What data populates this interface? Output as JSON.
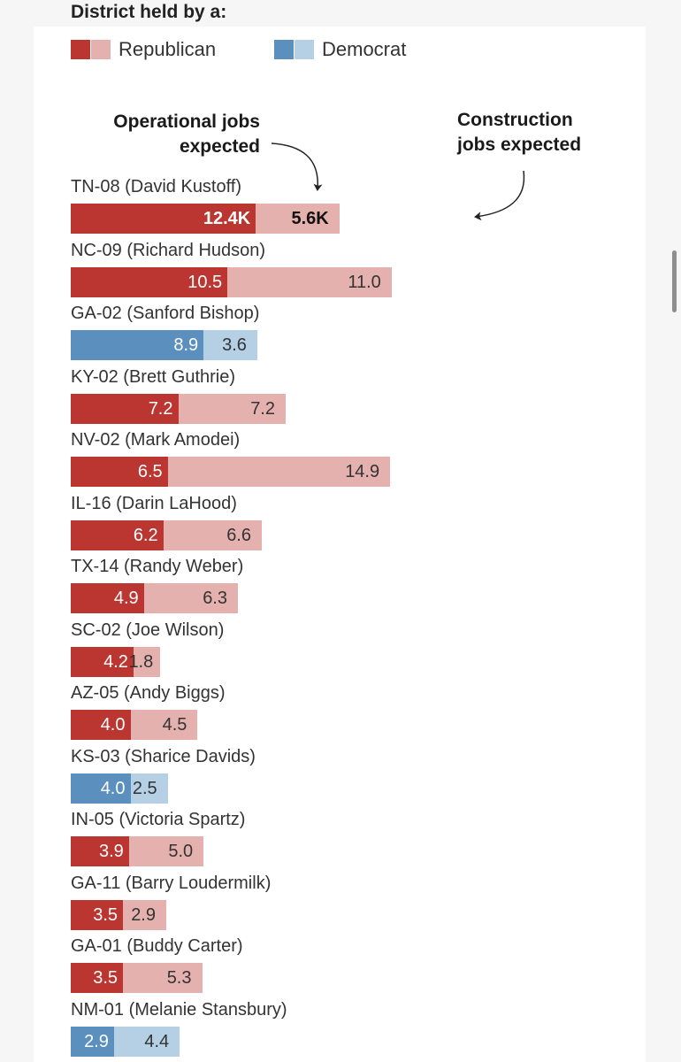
{
  "legend": {
    "title": "District held by a:",
    "republican_label": "Republican",
    "democrat_label": "Democrat"
  },
  "colors": {
    "republican_operational": "#bb3630",
    "republican_construction": "#e4b1ae",
    "democrat_operational": "#5a8fbe",
    "democrat_construction": "#b5cfe4"
  },
  "annotations": {
    "operational": [
      "Operational jobs",
      "expected"
    ],
    "construction": [
      "Construction",
      "jobs expected"
    ]
  },
  "chart_data": {
    "type": "bar",
    "orientation": "horizontal",
    "stacked": true,
    "title": "District held by a:",
    "units": "thousands of jobs",
    "xlim": [
      0,
      32
    ],
    "categories": [
      "TN-08 (David Kustoff)",
      "NC-09 (Richard Hudson)",
      "GA-02 (Sanford Bishop)",
      "KY-02 (Brett Guthrie)",
      "NV-02 (Mark Amodei)",
      "IL-16 (Darin LaHood)",
      "TX-14 (Randy Weber)",
      "SC-02 (Joe Wilson)",
      "AZ-05 (Andy Biggs)",
      "KS-03 (Sharice Davids)",
      "IN-05 (Victoria Spartz)",
      "GA-11 (Barry Loudermilk)",
      "GA-01 (Buddy Carter)",
      "NM-01 (Melanie Stansbury)"
    ],
    "party": [
      "R",
      "R",
      "D",
      "R",
      "R",
      "R",
      "R",
      "R",
      "R",
      "D",
      "R",
      "R",
      "R",
      "D"
    ],
    "series": [
      {
        "name": "Operational jobs expected",
        "values": [
          12.4,
          10.5,
          8.9,
          7.2,
          6.5,
          6.2,
          4.9,
          4.2,
          4.0,
          4.0,
          3.9,
          3.5,
          3.5,
          2.9
        ],
        "labels": [
          "12.4K",
          "10.5",
          "8.9",
          "7.2",
          "6.5",
          "6.2",
          "4.9",
          "4.2",
          "4.0",
          "4.0",
          "3.9",
          "3.5",
          "3.5",
          "2.9"
        ]
      },
      {
        "name": "Construction jobs expected",
        "values": [
          5.6,
          11.0,
          3.6,
          7.2,
          14.9,
          6.6,
          6.3,
          1.8,
          4.5,
          2.5,
          5.0,
          2.9,
          5.3,
          4.4
        ],
        "labels": [
          "5.6K",
          "11.0",
          "3.6",
          "7.2",
          "14.9",
          "6.6",
          "6.3",
          "1.8",
          "4.5",
          "2.5",
          "5.0",
          "2.9",
          "5.3",
          "4.4"
        ]
      }
    ]
  }
}
